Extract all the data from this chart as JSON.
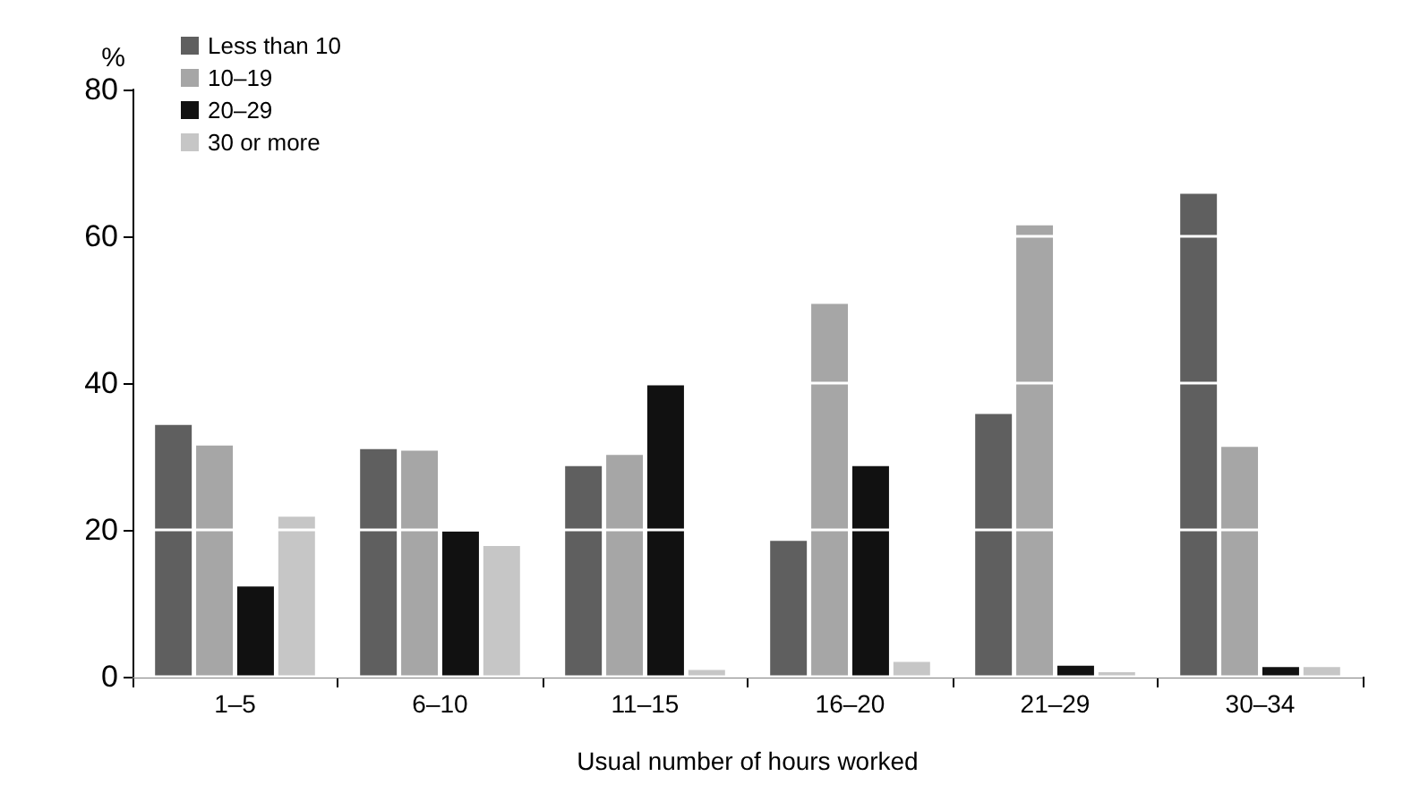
{
  "chart_data": {
    "type": "bar",
    "ylabel": "%",
    "xlabel": "Usual number of hours worked",
    "categories": [
      "1–5",
      "6–10",
      "11–15",
      "16–20",
      "21–29",
      "30–34"
    ],
    "series": [
      {
        "name": "Less than 10",
        "color": "#5f5f5f",
        "values": [
          34.3,
          31,
          28.7,
          18.5,
          35.8,
          65.8
        ]
      },
      {
        "name": "10–19",
        "color": "#a6a6a6",
        "values": [
          31.5,
          30.8,
          30.2,
          50.8,
          61.5,
          31.3
        ]
      },
      {
        "name": "20–29",
        "color": "#111111",
        "values": [
          12.3,
          19.8,
          39.7,
          28.7,
          1.5,
          1.3
        ]
      },
      {
        "name": "30 or more",
        "color": "#c6c6c6",
        "values": [
          21.8,
          17.8,
          0.9,
          2.0,
          0.6,
          1.3
        ]
      }
    ],
    "ylim": [
      0,
      80
    ],
    "yticks": [
      0,
      20,
      40,
      60,
      80
    ],
    "grid": "y",
    "legend": "top left"
  }
}
